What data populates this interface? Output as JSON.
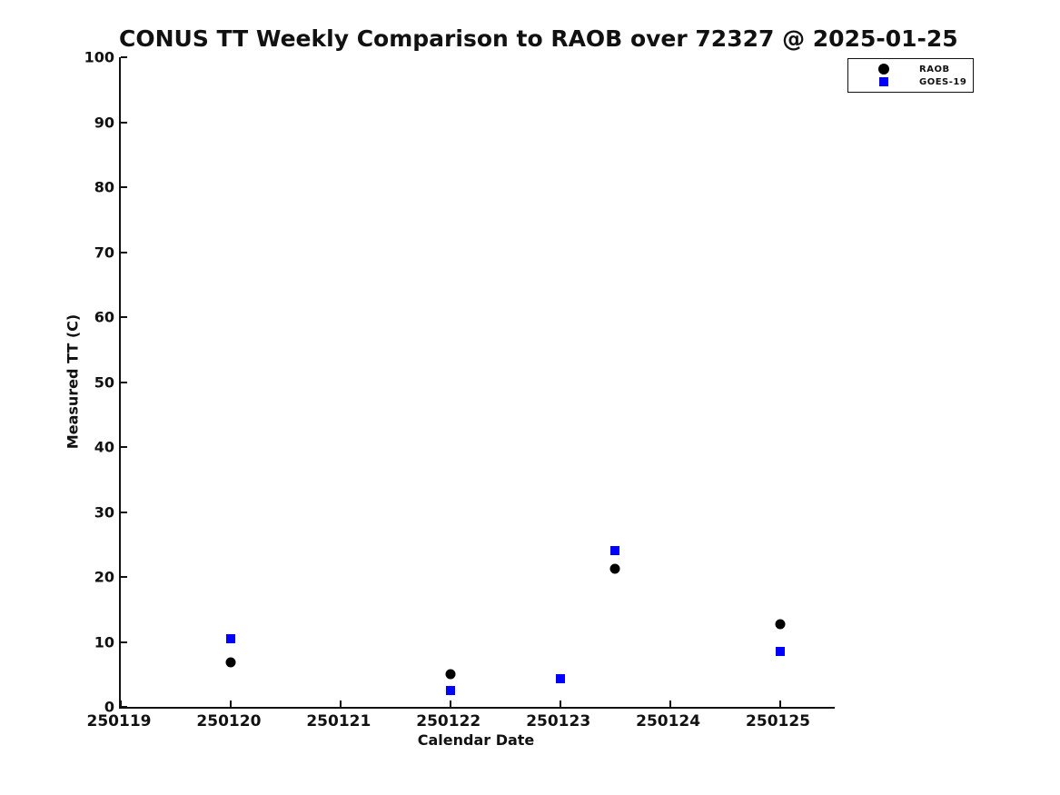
{
  "chart_data": {
    "type": "scatter",
    "title": "CONUS TT Weekly Comparison to RAOB over 72327 @ 2025-01-25",
    "xlabel": "Calendar Date",
    "ylabel": "Measured TT (C)",
    "xlim": [
      250119,
      250125.5
    ],
    "ylim": [
      0,
      100
    ],
    "x_ticks": [
      250119,
      250120,
      250121,
      250122,
      250123,
      250124,
      250125
    ],
    "y_ticks": [
      0,
      10,
      20,
      30,
      40,
      50,
      60,
      70,
      80,
      90,
      100
    ],
    "grid": false,
    "legend_position": "upper right",
    "axis_color": "#111111",
    "series": [
      {
        "name": "RAOB",
        "marker": "circle",
        "color": "#000000",
        "points": [
          [
            250120,
            6.8
          ],
          [
            250122,
            5.1
          ],
          [
            250123.5,
            21.3
          ],
          [
            250125,
            12.7
          ]
        ]
      },
      {
        "name": "GOES-19",
        "marker": "square",
        "color": "#0000ff",
        "points": [
          [
            250120,
            10.5
          ],
          [
            250122,
            2.5
          ],
          [
            250123,
            4.3
          ],
          [
            250123.5,
            24.1
          ],
          [
            250125,
            8.6
          ]
        ]
      }
    ]
  }
}
